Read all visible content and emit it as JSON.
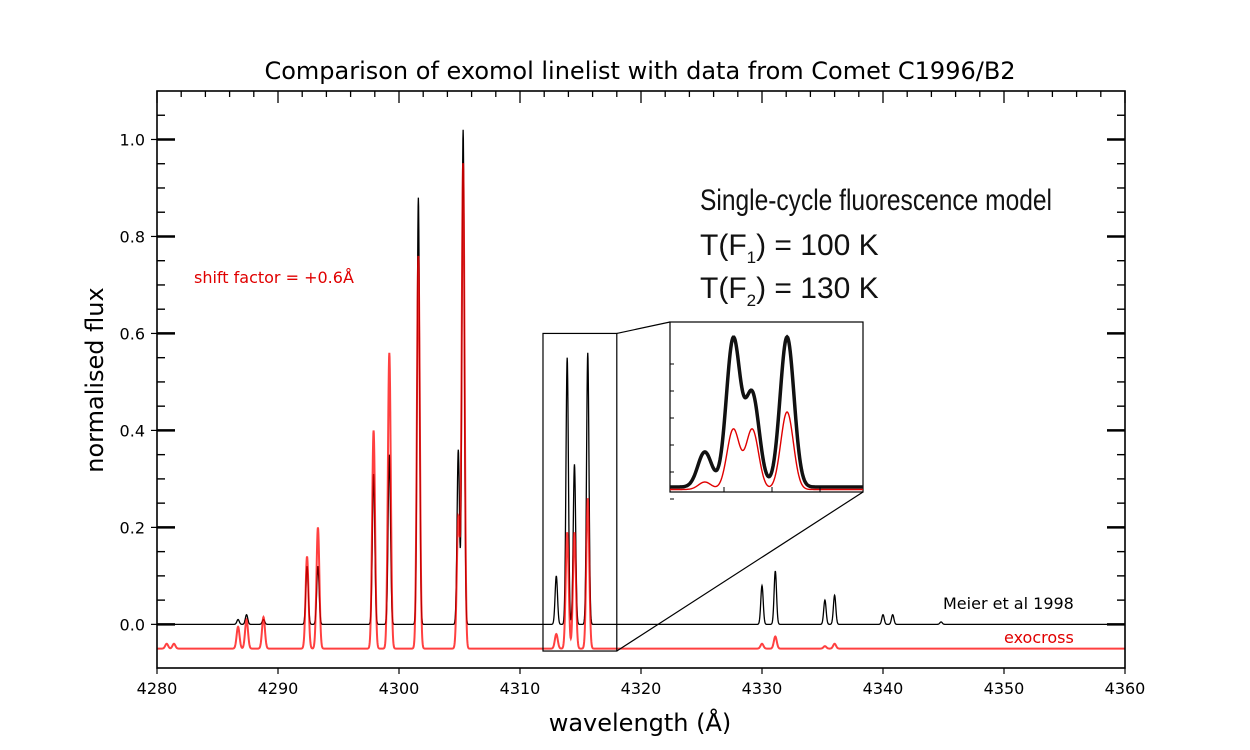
{
  "chart_data": {
    "type": "line",
    "title": "Comparison of exomol linelist with data from Comet C1996/B2",
    "xlabel": "wavelength (Å)",
    "ylabel": "normalised flux",
    "xlim": [
      4280,
      4360
    ],
    "ylim": [
      -0.09,
      1.1
    ],
    "x_ticks": [
      4280,
      4290,
      4300,
      4310,
      4320,
      4330,
      4340,
      4350,
      4360
    ],
    "x_tick_labels": [
      "4280",
      "4290",
      "4300",
      "4310",
      "4320",
      "4330",
      "4340",
      "4350",
      "4360"
    ],
    "y_ticks": [
      0.0,
      0.2,
      0.4,
      0.6,
      0.8,
      1.0
    ],
    "y_tick_labels": [
      "0.0",
      "0.2",
      "0.4",
      "0.6",
      "0.8",
      "1.0"
    ],
    "grid": false,
    "series": [
      {
        "name": "Meier et al 1998",
        "color": "#000000",
        "baseline": 0.0,
        "width": 0.1,
        "peaks": [
          {
            "x": 4286.7,
            "y": 0.01
          },
          {
            "x": 4287.4,
            "y": 0.02
          },
          {
            "x": 4288.8,
            "y": 0.01
          },
          {
            "x": 4292.4,
            "y": 0.12
          },
          {
            "x": 4293.3,
            "y": 0.12
          },
          {
            "x": 4297.9,
            "y": 0.31
          },
          {
            "x": 4299.2,
            "y": 0.35
          },
          {
            "x": 4301.6,
            "y": 0.88
          },
          {
            "x": 4304.9,
            "y": 0.36
          },
          {
            "x": 4305.3,
            "y": 1.02
          },
          {
            "x": 4313.0,
            "y": 0.1
          },
          {
            "x": 4313.9,
            "y": 0.55
          },
          {
            "x": 4314.5,
            "y": 0.33
          },
          {
            "x": 4315.6,
            "y": 0.56
          },
          {
            "x": 4330.0,
            "y": 0.08
          },
          {
            "x": 4331.1,
            "y": 0.11
          },
          {
            "x": 4335.2,
            "y": 0.05
          },
          {
            "x": 4336.0,
            "y": 0.06
          },
          {
            "x": 4340.0,
            "y": 0.02
          },
          {
            "x": 4340.8,
            "y": 0.02
          },
          {
            "x": 4344.8,
            "y": 0.005
          }
        ]
      },
      {
        "name": "exocross",
        "color": "#ff0000",
        "baseline": -0.05,
        "width": 0.12,
        "peaks": [
          {
            "x": 4280.8,
            "y": -0.04
          },
          {
            "x": 4281.4,
            "y": -0.04
          },
          {
            "x": 4286.7,
            "y": -0.005
          },
          {
            "x": 4287.4,
            "y": 0.01
          },
          {
            "x": 4288.8,
            "y": 0.015
          },
          {
            "x": 4292.4,
            "y": 0.14
          },
          {
            "x": 4293.3,
            "y": 0.2
          },
          {
            "x": 4297.9,
            "y": 0.4
          },
          {
            "x": 4299.2,
            "y": 0.56
          },
          {
            "x": 4301.6,
            "y": 0.76
          },
          {
            "x": 4304.9,
            "y": 0.22
          },
          {
            "x": 4305.3,
            "y": 0.95
          },
          {
            "x": 4313.0,
            "y": -0.02
          },
          {
            "x": 4313.9,
            "y": 0.19
          },
          {
            "x": 4314.5,
            "y": 0.19
          },
          {
            "x": 4315.6,
            "y": 0.26
          },
          {
            "x": 4330.0,
            "y": -0.04
          },
          {
            "x": 4331.1,
            "y": -0.025
          },
          {
            "x": 4335.2,
            "y": -0.045
          },
          {
            "x": 4336.0,
            "y": -0.04
          }
        ]
      }
    ],
    "annotations": {
      "shift_factor": "shift factor = +0.6Å",
      "meier_label": "Meier et al 1998",
      "exocross_label": "exocross"
    },
    "inset_box": {
      "x0": 4311.9,
      "x1": 4318.0,
      "y0": -0.055,
      "y1": 0.6
    },
    "model_text": {
      "line1": "Single-cycle fluorescence model",
      "line2_main": "T(F",
      "line2_sub": "1",
      "line2_rest": ") = 100 K",
      "line3_main": "T(F",
      "line3_sub": "2",
      "line3_rest": ") = 130 K"
    }
  }
}
